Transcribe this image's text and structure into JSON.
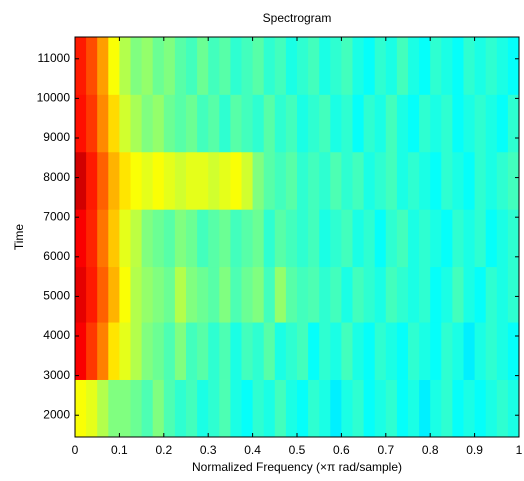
{
  "chart_data": {
    "type": "heatmap",
    "title": "Spectrogram",
    "x_label": "Normalized Frequency  (×π rad/sample)",
    "y_label": "Time",
    "colormap": "jet",
    "xlim": [
      0,
      1
    ],
    "ylim": [
      1450,
      11550
    ],
    "xticks": [
      0,
      0.1,
      0.2,
      0.3,
      0.4,
      0.5,
      0.6,
      0.7,
      0.8,
      0.9,
      1
    ],
    "yticks": [
      2000,
      3000,
      4000,
      5000,
      6000,
      7000,
      8000,
      9000,
      10000,
      11000
    ],
    "x_edges": [
      0,
      0.025,
      0.05,
      0.075,
      0.1,
      0.125,
      0.15,
      0.175,
      0.2,
      0.225,
      0.25,
      0.275,
      0.3,
      0.325,
      0.35,
      0.375,
      0.4,
      0.425,
      0.45,
      0.475,
      0.5,
      0.525,
      0.55,
      0.575,
      0.6,
      0.625,
      0.65,
      0.675,
      0.7,
      0.725,
      0.75,
      0.775,
      0.8,
      0.825,
      0.85,
      0.875,
      0.9,
      0.925,
      0.95,
      0.975,
      1
    ],
    "y_edges": [
      1450,
      2900,
      4350,
      5750,
      7200,
      8650,
      10100,
      11550
    ],
    "z": [
      [
        0.62,
        0.6,
        0.55,
        0.5,
        0.5,
        0.48,
        0.45,
        0.5,
        0.45,
        0.42,
        0.44,
        0.4,
        0.42,
        0.45,
        0.4,
        0.38,
        0.42,
        0.4,
        0.44,
        0.4,
        0.38,
        0.42,
        0.4,
        0.36,
        0.4,
        0.42,
        0.38,
        0.4,
        0.42,
        0.38,
        0.4,
        0.36,
        0.4,
        0.42,
        0.38,
        0.4,
        0.38,
        0.4,
        0.42,
        0.4
      ],
      [
        0.88,
        0.82,
        0.75,
        0.65,
        0.6,
        0.55,
        0.5,
        0.48,
        0.45,
        0.5,
        0.44,
        0.46,
        0.42,
        0.45,
        0.4,
        0.44,
        0.42,
        0.46,
        0.4,
        0.42,
        0.44,
        0.38,
        0.42,
        0.4,
        0.44,
        0.4,
        0.38,
        0.42,
        0.4,
        0.38,
        0.42,
        0.4,
        0.38,
        0.42,
        0.4,
        0.36,
        0.4,
        0.42,
        0.4,
        0.38
      ],
      [
        0.9,
        0.85,
        0.78,
        0.7,
        0.62,
        0.55,
        0.52,
        0.5,
        0.48,
        0.55,
        0.5,
        0.48,
        0.46,
        0.5,
        0.45,
        0.48,
        0.5,
        0.44,
        0.52,
        0.46,
        0.44,
        0.45,
        0.42,
        0.44,
        0.4,
        0.44,
        0.42,
        0.4,
        0.44,
        0.42,
        0.4,
        0.42,
        0.38,
        0.4,
        0.44,
        0.4,
        0.38,
        0.42,
        0.4,
        0.42
      ],
      [
        0.88,
        0.84,
        0.76,
        0.68,
        0.6,
        0.56,
        0.5,
        0.48,
        0.46,
        0.5,
        0.48,
        0.44,
        0.46,
        0.48,
        0.44,
        0.46,
        0.48,
        0.42,
        0.46,
        0.44,
        0.42,
        0.44,
        0.4,
        0.42,
        0.44,
        0.4,
        0.42,
        0.38,
        0.42,
        0.44,
        0.4,
        0.42,
        0.4,
        0.38,
        0.42,
        0.4,
        0.42,
        0.38,
        0.4,
        0.42
      ],
      [
        0.92,
        0.85,
        0.78,
        0.7,
        0.65,
        0.62,
        0.6,
        0.62,
        0.6,
        0.58,
        0.6,
        0.6,
        0.58,
        0.6,
        0.62,
        0.58,
        0.5,
        0.46,
        0.44,
        0.46,
        0.42,
        0.44,
        0.42,
        0.45,
        0.42,
        0.44,
        0.4,
        0.42,
        0.44,
        0.4,
        0.42,
        0.4,
        0.38,
        0.42,
        0.4,
        0.38,
        0.42,
        0.4,
        0.42,
        0.44
      ],
      [
        0.86,
        0.82,
        0.74,
        0.66,
        0.58,
        0.54,
        0.5,
        0.52,
        0.48,
        0.46,
        0.48,
        0.44,
        0.46,
        0.42,
        0.46,
        0.44,
        0.42,
        0.46,
        0.42,
        0.44,
        0.4,
        0.42,
        0.44,
        0.4,
        0.42,
        0.38,
        0.42,
        0.4,
        0.44,
        0.4,
        0.38,
        0.42,
        0.4,
        0.42,
        0.38,
        0.4,
        0.42,
        0.4,
        0.38,
        0.42
      ],
      [
        0.85,
        0.8,
        0.72,
        0.62,
        0.55,
        0.5,
        0.52,
        0.48,
        0.5,
        0.46,
        0.44,
        0.48,
        0.44,
        0.46,
        0.42,
        0.44,
        0.46,
        0.42,
        0.44,
        0.4,
        0.42,
        0.44,
        0.4,
        0.42,
        0.44,
        0.4,
        0.38,
        0.42,
        0.4,
        0.44,
        0.4,
        0.38,
        0.42,
        0.4,
        0.38,
        0.42,
        0.4,
        0.42,
        0.4,
        0.38
      ]
    ]
  }
}
